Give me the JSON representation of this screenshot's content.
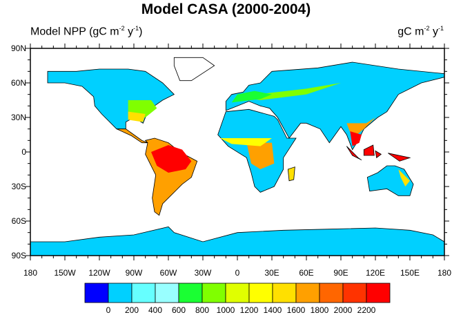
{
  "title": "Model CASA (2000-2004)",
  "subtitle_left": {
    "text": "Model NPP (gC m",
    "sup1": "-2",
    "mid": " y",
    "sup2": "-1",
    "end": ")"
  },
  "subtitle_right": {
    "text": "gC m",
    "sup1": "-2",
    "mid": " y",
    "sup2": "-1"
  },
  "lat_ticks": [
    "90N",
    "60N",
    "30N",
    "0",
    "30S",
    "60S",
    "90S"
  ],
  "lon_ticks": [
    "180",
    "150W",
    "120W",
    "90W",
    "60W",
    "30W",
    "0",
    "30E",
    "60E",
    "90E",
    "120E",
    "150E",
    "180"
  ],
  "chart_data": {
    "type": "heatmap",
    "title": "Model CASA (2000-2004)",
    "variable": "Model NPP",
    "units": "gC m-2 y-1",
    "colorbar": {
      "levels": [
        "0",
        "200",
        "400",
        "600",
        "800",
        "1000",
        "1200",
        "1400",
        "1600",
        "1800",
        "2000",
        "2200"
      ],
      "colors": [
        "#0000ff",
        "#00d0ff",
        "#66ffff",
        "#99ffff",
        "#1aff33",
        "#80ff00",
        "#e0ff00",
        "#ffff00",
        "#ffe000",
        "#ffa000",
        "#ff6600",
        "#ff3300",
        "#ff0000"
      ]
    },
    "lat_range": [
      -90,
      90
    ],
    "lon_range": [
      -180,
      180
    ]
  }
}
